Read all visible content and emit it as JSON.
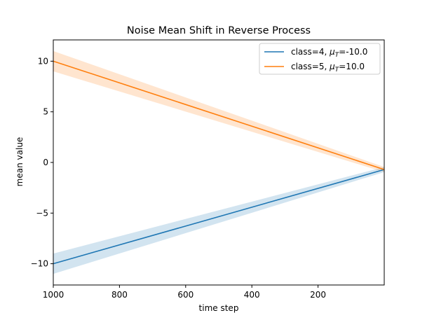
{
  "chart_data": {
    "type": "line",
    "title": "Noise Mean Shift in Reverse Process",
    "xlabel": "time step",
    "ylabel": "mean value",
    "x_reversed": true,
    "xlim": [
      1000,
      0
    ],
    "ylim": [
      -12.1,
      12.1
    ],
    "x_ticks": [
      {
        "value": 1000,
        "label": "1000"
      },
      {
        "value": 800,
        "label": "800"
      },
      {
        "value": 600,
        "label": "600"
      },
      {
        "value": 400,
        "label": "400"
      },
      {
        "value": 200,
        "label": "200"
      }
    ],
    "y_ticks": [
      {
        "value": 10,
        "label": "10"
      },
      {
        "value": 5,
        "label": "5"
      },
      {
        "value": 0,
        "label": "0"
      },
      {
        "value": -5,
        "label": "−5"
      },
      {
        "value": -10,
        "label": "−10"
      }
    ],
    "grid": false,
    "legend_position": "upper right",
    "series": [
      {
        "name_prefix": "class=4, ",
        "name_mu": "μ",
        "name_sub": "T",
        "name_suffix": "=-10.0",
        "color": "#1f77b4",
        "x": [
          1000,
          0
        ],
        "y": [
          -10.0,
          -0.7
        ],
        "band_halfwidth": [
          1.0,
          0.25
        ]
      },
      {
        "name_prefix": "class=5, ",
        "name_mu": "μ",
        "name_sub": "T",
        "name_suffix": "=10.0",
        "color": "#ff7f0e",
        "x": [
          1000,
          0
        ],
        "y": [
          10.0,
          -0.7
        ],
        "band_halfwidth": [
          1.0,
          0.25
        ]
      }
    ]
  }
}
